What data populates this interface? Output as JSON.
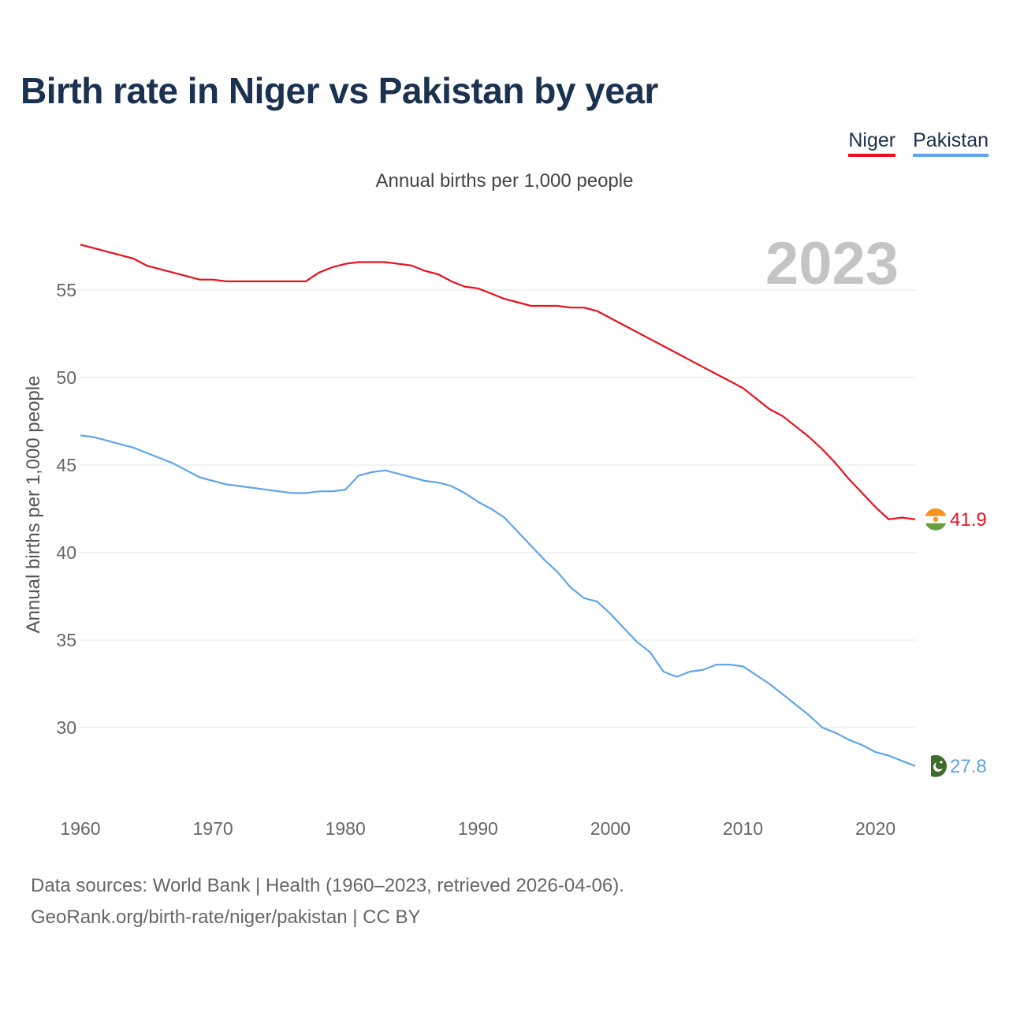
{
  "header": {
    "title": "Birth rate in Niger vs Pakistan by year",
    "subtitle": "Annual births per 1,000 people"
  },
  "legend": [
    {
      "label": "Niger",
      "color": "#e8101d"
    },
    {
      "label": "Pakistan",
      "color": "#5fa5ea"
    }
  ],
  "footer": {
    "line1": "Data sources: World Bank | Health (1960–2023, retrieved 2026-04-06).",
    "line2": "GeoRank.org/birth-rate/niger/pakistan | CC BY"
  },
  "chart_data": {
    "type": "line",
    "title": "Birth rate in Niger vs Pakistan by year",
    "subtitle": "Annual births per 1,000 people",
    "xlabel": "",
    "ylabel": "Annual births per 1,000 people",
    "current_year_label": "2023",
    "xlim": [
      1960,
      2023
    ],
    "ylim": [
      26.5,
      58
    ],
    "x_ticks": [
      1960,
      1970,
      1980,
      1990,
      2000,
      2010,
      2020
    ],
    "y_ticks": [
      30,
      35,
      40,
      45,
      50,
      55
    ],
    "grid": true,
    "legend_position": "top-right",
    "x": [
      1960,
      1961,
      1962,
      1963,
      1964,
      1965,
      1966,
      1967,
      1968,
      1969,
      1970,
      1971,
      1972,
      1973,
      1974,
      1975,
      1976,
      1977,
      1978,
      1979,
      1980,
      1981,
      1982,
      1983,
      1984,
      1985,
      1986,
      1987,
      1988,
      1989,
      1990,
      1991,
      1992,
      1993,
      1994,
      1995,
      1996,
      1997,
      1998,
      1999,
      2000,
      2001,
      2002,
      2003,
      2004,
      2005,
      2006,
      2007,
      2008,
      2009,
      2010,
      2011,
      2012,
      2013,
      2014,
      2015,
      2016,
      2017,
      2018,
      2019,
      2020,
      2021,
      2022,
      2023
    ],
    "series": [
      {
        "name": "Niger",
        "color": "#e8101d",
        "end_label": "41.9",
        "values": [
          57.6,
          57.4,
          57.2,
          57.0,
          56.8,
          56.4,
          56.2,
          56.0,
          55.8,
          55.6,
          55.6,
          55.5,
          55.5,
          55.5,
          55.5,
          55.5,
          55.5,
          55.5,
          56.0,
          56.3,
          56.5,
          56.6,
          56.6,
          56.6,
          56.5,
          56.4,
          56.1,
          55.9,
          55.5,
          55.2,
          55.1,
          54.8,
          54.5,
          54.3,
          54.1,
          54.1,
          54.1,
          54.0,
          54.0,
          53.8,
          53.4,
          53.0,
          52.6,
          52.2,
          51.8,
          51.4,
          51.0,
          50.6,
          50.2,
          49.8,
          49.4,
          48.8,
          48.2,
          47.8,
          47.2,
          46.6,
          45.9,
          45.1,
          44.2,
          43.4,
          42.6,
          41.9,
          42.0,
          41.9
        ]
      },
      {
        "name": "Pakistan",
        "color": "#5fa5ea",
        "end_label": "27.8",
        "values": [
          46.7,
          46.6,
          46.4,
          46.2,
          46.0,
          45.7,
          45.4,
          45.1,
          44.7,
          44.3,
          44.1,
          43.9,
          43.8,
          43.7,
          43.6,
          43.5,
          43.4,
          43.4,
          43.5,
          43.5,
          43.6,
          44.4,
          44.6,
          44.7,
          44.5,
          44.3,
          44.1,
          44.0,
          43.8,
          43.4,
          42.9,
          42.5,
          42.0,
          41.2,
          40.4,
          39.6,
          38.9,
          38.0,
          37.4,
          37.2,
          36.5,
          35.7,
          34.9,
          34.3,
          33.2,
          32.9,
          33.2,
          33.3,
          33.6,
          33.6,
          33.5,
          33.0,
          32.5,
          31.9,
          31.3,
          30.7,
          30.0,
          29.7,
          29.3,
          29.0,
          28.6,
          28.4,
          28.1,
          27.8
        ]
      }
    ]
  }
}
